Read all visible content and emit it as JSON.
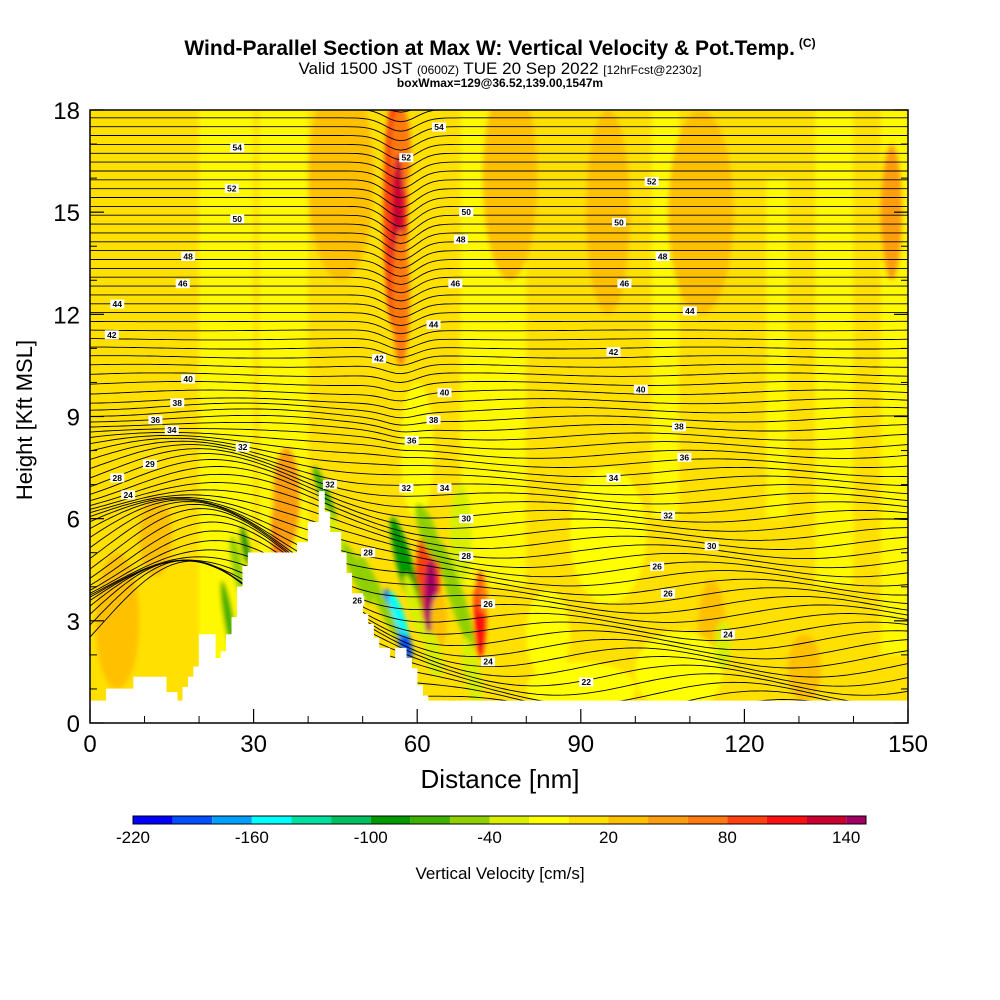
{
  "title": {
    "main": "Wind-Parallel Section at Max W: Vertical Velocity & Pot.Temp.",
    "copyright": "(C)",
    "valid_pre": "Valid 1500 JST",
    "valid_z": "(0600Z)",
    "valid_post": "TUE 20 Sep 2022",
    "forecast": "[12hrFcst@2230z]",
    "boxline": "boxWmax=129@36.52,139.00,1547m"
  },
  "chart_data": {
    "type": "heatmap",
    "xlabel": "Distance [nm]",
    "ylabel": "Height [Kft MSL]",
    "xlim": [
      0,
      150
    ],
    "ylim": [
      0,
      18
    ],
    "x_ticks": [
      0,
      30,
      60,
      90,
      120,
      150
    ],
    "y_ticks": [
      0,
      3,
      6,
      9,
      12,
      15,
      18
    ],
    "colorbar": {
      "label": "Vertical Velocity [cm/s]",
      "tick_labels": [
        -220,
        -160,
        -100,
        -40,
        20,
        80,
        140
      ],
      "min": -220,
      "max": 150,
      "step": 20,
      "colors": [
        "#0000ff",
        "#0050ff",
        "#00a0ff",
        "#00ffff",
        "#00e0a0",
        "#00c060",
        "#009900",
        "#40b000",
        "#90d000",
        "#d8f000",
        "#ffff00",
        "#ffe000",
        "#ffc000",
        "#ff9d10",
        "#ff7a10",
        "#ff4010",
        "#ff1010",
        "#cc0030",
        "#a00060",
        "#780080",
        "#5a00a0"
      ]
    },
    "terrain": [
      [
        0,
        0.65
      ],
      [
        3,
        0.65
      ],
      [
        3,
        1.0
      ],
      [
        8,
        1.0
      ],
      [
        8,
        1.35
      ],
      [
        14,
        1.35
      ],
      [
        14,
        0.9
      ],
      [
        16,
        0.9
      ],
      [
        16,
        0.65
      ],
      [
        17,
        0.65
      ],
      [
        17,
        1.05
      ],
      [
        18,
        1.05
      ],
      [
        18,
        1.35
      ],
      [
        19,
        1.35
      ],
      [
        19,
        1.65
      ],
      [
        20,
        1.65
      ],
      [
        20,
        2.6
      ],
      [
        23,
        2.6
      ],
      [
        23,
        1.9
      ],
      [
        24,
        1.9
      ],
      [
        24,
        2.1
      ],
      [
        25,
        2.1
      ],
      [
        25,
        2.6
      ],
      [
        26,
        2.6
      ],
      [
        26,
        3.1
      ],
      [
        27,
        3.1
      ],
      [
        27,
        4.0
      ],
      [
        28,
        4.0
      ],
      [
        28,
        4.6
      ],
      [
        29,
        4.6
      ],
      [
        29,
        5.0
      ],
      [
        38,
        5.0
      ],
      [
        38,
        5.3
      ],
      [
        40,
        5.3
      ],
      [
        40,
        5.9
      ],
      [
        42,
        5.9
      ],
      [
        42,
        6.8
      ],
      [
        43,
        6.8
      ],
      [
        43,
        6.2
      ],
      [
        44,
        6.2
      ],
      [
        44,
        5.6
      ],
      [
        46,
        5.6
      ],
      [
        46,
        5.0
      ],
      [
        47,
        5.0
      ],
      [
        47,
        4.4
      ],
      [
        48,
        4.4
      ],
      [
        48,
        3.8
      ],
      [
        50,
        3.8
      ],
      [
        50,
        3.2
      ],
      [
        51,
        3.2
      ],
      [
        51,
        2.9
      ],
      [
        52,
        2.9
      ],
      [
        52,
        2.5
      ],
      [
        53,
        2.5
      ],
      [
        53,
        2.2
      ],
      [
        55,
        2.2
      ],
      [
        55,
        1.9
      ],
      [
        56,
        1.9
      ],
      [
        56,
        2.2
      ],
      [
        58,
        2.2
      ],
      [
        58,
        1.9
      ],
      [
        59,
        1.9
      ],
      [
        59,
        1.6
      ],
      [
        60,
        1.6
      ],
      [
        60,
        1.1
      ],
      [
        61,
        1.1
      ],
      [
        61,
        0.8
      ],
      [
        62,
        0.8
      ],
      [
        62,
        0.65
      ],
      [
        150,
        0.65
      ],
      [
        150,
        0
      ],
      [
        0,
        0
      ]
    ],
    "isentropes": [
      {
        "label": "22",
        "pos": [
          91,
          1.2
        ]
      },
      {
        "label": "24",
        "pos": [
          7,
          6.7
        ]
      },
      {
        "label": "24",
        "pos": [
          73,
          1.8
        ]
      },
      {
        "label": "24",
        "pos": [
          117,
          2.6
        ]
      },
      {
        "label": "26",
        "pos": [
          49,
          3.6
        ]
      },
      {
        "label": "26",
        "pos": [
          73,
          3.5
        ]
      },
      {
        "label": "26",
        "pos": [
          104,
          4.6
        ]
      },
      {
        "label": "26",
        "pos": [
          106,
          3.8
        ]
      },
      {
        "label": "28",
        "pos": [
          5,
          7.2
        ]
      },
      {
        "label": "28",
        "pos": [
          51,
          5.0
        ]
      },
      {
        "label": "28",
        "pos": [
          69,
          4.9
        ]
      },
      {
        "label": "29",
        "pos": [
          11,
          7.6
        ]
      },
      {
        "label": "30",
        "pos": [
          69,
          6.0
        ]
      },
      {
        "label": "30",
        "pos": [
          114,
          5.2
        ]
      },
      {
        "label": "32",
        "pos": [
          28,
          8.1
        ]
      },
      {
        "label": "32",
        "pos": [
          106,
          6.1
        ]
      },
      {
        "label": "32",
        "pos": [
          44,
          7.0
        ]
      },
      {
        "label": "32",
        "pos": [
          58,
          6.9
        ]
      },
      {
        "label": "34",
        "pos": [
          15,
          8.6
        ]
      },
      {
        "label": "34",
        "pos": [
          65,
          6.9
        ]
      },
      {
        "label": "34",
        "pos": [
          96,
          7.2
        ]
      },
      {
        "label": "36",
        "pos": [
          12,
          8.9
        ]
      },
      {
        "label": "36",
        "pos": [
          59,
          8.3
        ]
      },
      {
        "label": "36",
        "pos": [
          109,
          7.8
        ]
      },
      {
        "label": "38",
        "pos": [
          16,
          9.4
        ]
      },
      {
        "label": "38",
        "pos": [
          63,
          8.9
        ]
      },
      {
        "label": "38",
        "pos": [
          108,
          8.7
        ]
      },
      {
        "label": "40",
        "pos": [
          18,
          10.1
        ]
      },
      {
        "label": "40",
        "pos": [
          65,
          9.7
        ]
      },
      {
        "label": "40",
        "pos": [
          101,
          9.8
        ]
      },
      {
        "label": "42",
        "pos": [
          4,
          11.4
        ]
      },
      {
        "label": "42",
        "pos": [
          53,
          10.7
        ]
      },
      {
        "label": "42",
        "pos": [
          96,
          10.9
        ]
      },
      {
        "label": "44",
        "pos": [
          5,
          12.3
        ]
      },
      {
        "label": "44",
        "pos": [
          63,
          11.7
        ]
      },
      {
        "label": "44",
        "pos": [
          110,
          12.1
        ]
      },
      {
        "label": "46",
        "pos": [
          17,
          12.9
        ]
      },
      {
        "label": "46",
        "pos": [
          67,
          12.9
        ]
      },
      {
        "label": "46",
        "pos": [
          98,
          12.9
        ]
      },
      {
        "label": "48",
        "pos": [
          18,
          13.7
        ]
      },
      {
        "label": "48",
        "pos": [
          68,
          14.2
        ]
      },
      {
        "label": "48",
        "pos": [
          105,
          13.7
        ]
      },
      {
        "label": "50",
        "pos": [
          27,
          14.8
        ]
      },
      {
        "label": "50",
        "pos": [
          69,
          15.0
        ]
      },
      {
        "label": "50",
        "pos": [
          97,
          14.7
        ]
      },
      {
        "label": "52",
        "pos": [
          26,
          15.7
        ]
      },
      {
        "label": "52",
        "pos": [
          58,
          16.6
        ]
      },
      {
        "label": "52",
        "pos": [
          103,
          15.9
        ]
      },
      {
        "label": "54",
        "pos": [
          27,
          16.9
        ]
      },
      {
        "label": "54",
        "pos": [
          64,
          17.5
        ]
      }
    ]
  }
}
